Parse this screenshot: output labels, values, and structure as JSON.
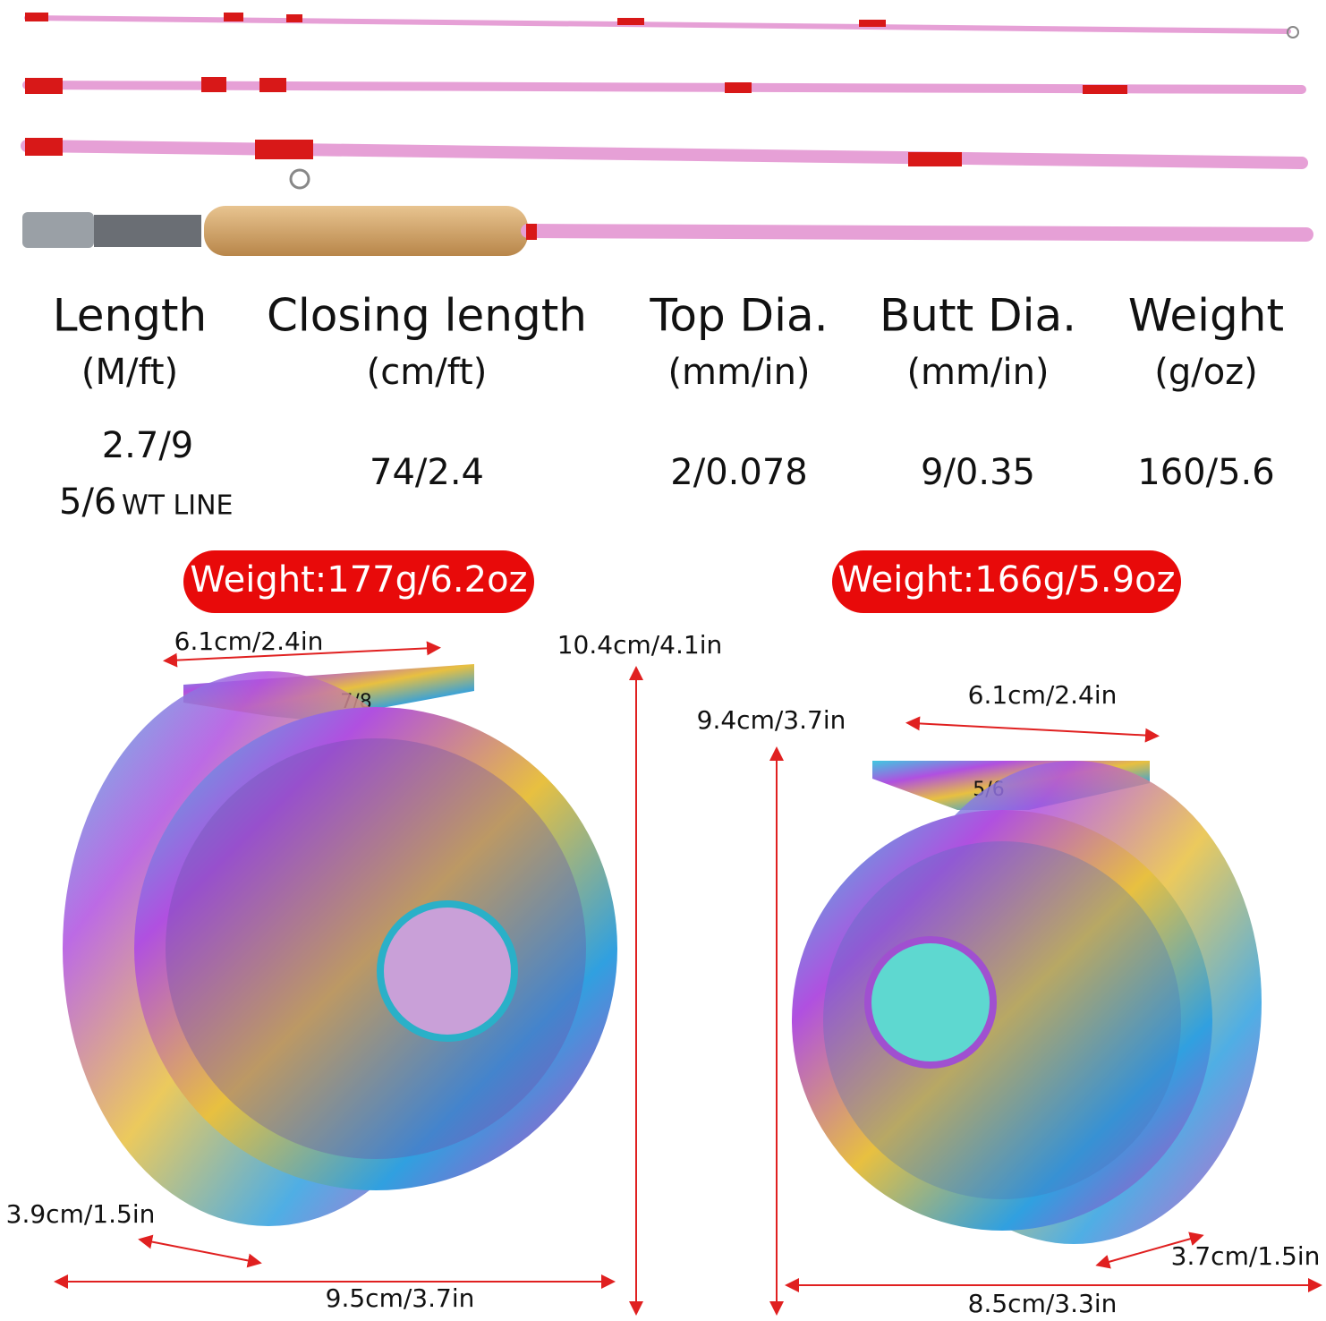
{
  "rod_specs": {
    "columns": [
      {
        "title": "Length",
        "unit": "(M/ft)",
        "value": "2.7/9"
      },
      {
        "title": "Closing length",
        "unit": "(cm/ft)",
        "value": "74/2.4"
      },
      {
        "title": "Top Dia.",
        "unit": "(mm/in)",
        "value": "2/0.078"
      },
      {
        "title": "Butt Dia.",
        "unit": "(mm/in)",
        "value": "9/0.35"
      },
      {
        "title": "Weight",
        "unit": "(g/oz)",
        "value": "160/5.6"
      }
    ],
    "line_weight": {
      "number": "5/6",
      "text": "WT LINE"
    }
  },
  "reels": [
    {
      "weight": "Weight:177g/6.2oz",
      "model": "7/8",
      "spool_width": "6.1cm/2.4in",
      "height": "10.4cm/4.1in",
      "depth": "3.9cm/1.5in",
      "width": "9.5cm/3.7in"
    },
    {
      "weight": "Weight:166g/5.9oz",
      "model": "5/6",
      "spool_width": "6.1cm/2.4in",
      "height": "9.4cm/3.7in",
      "depth": "3.7cm/1.5in",
      "width": "8.5cm/3.3in"
    }
  ]
}
